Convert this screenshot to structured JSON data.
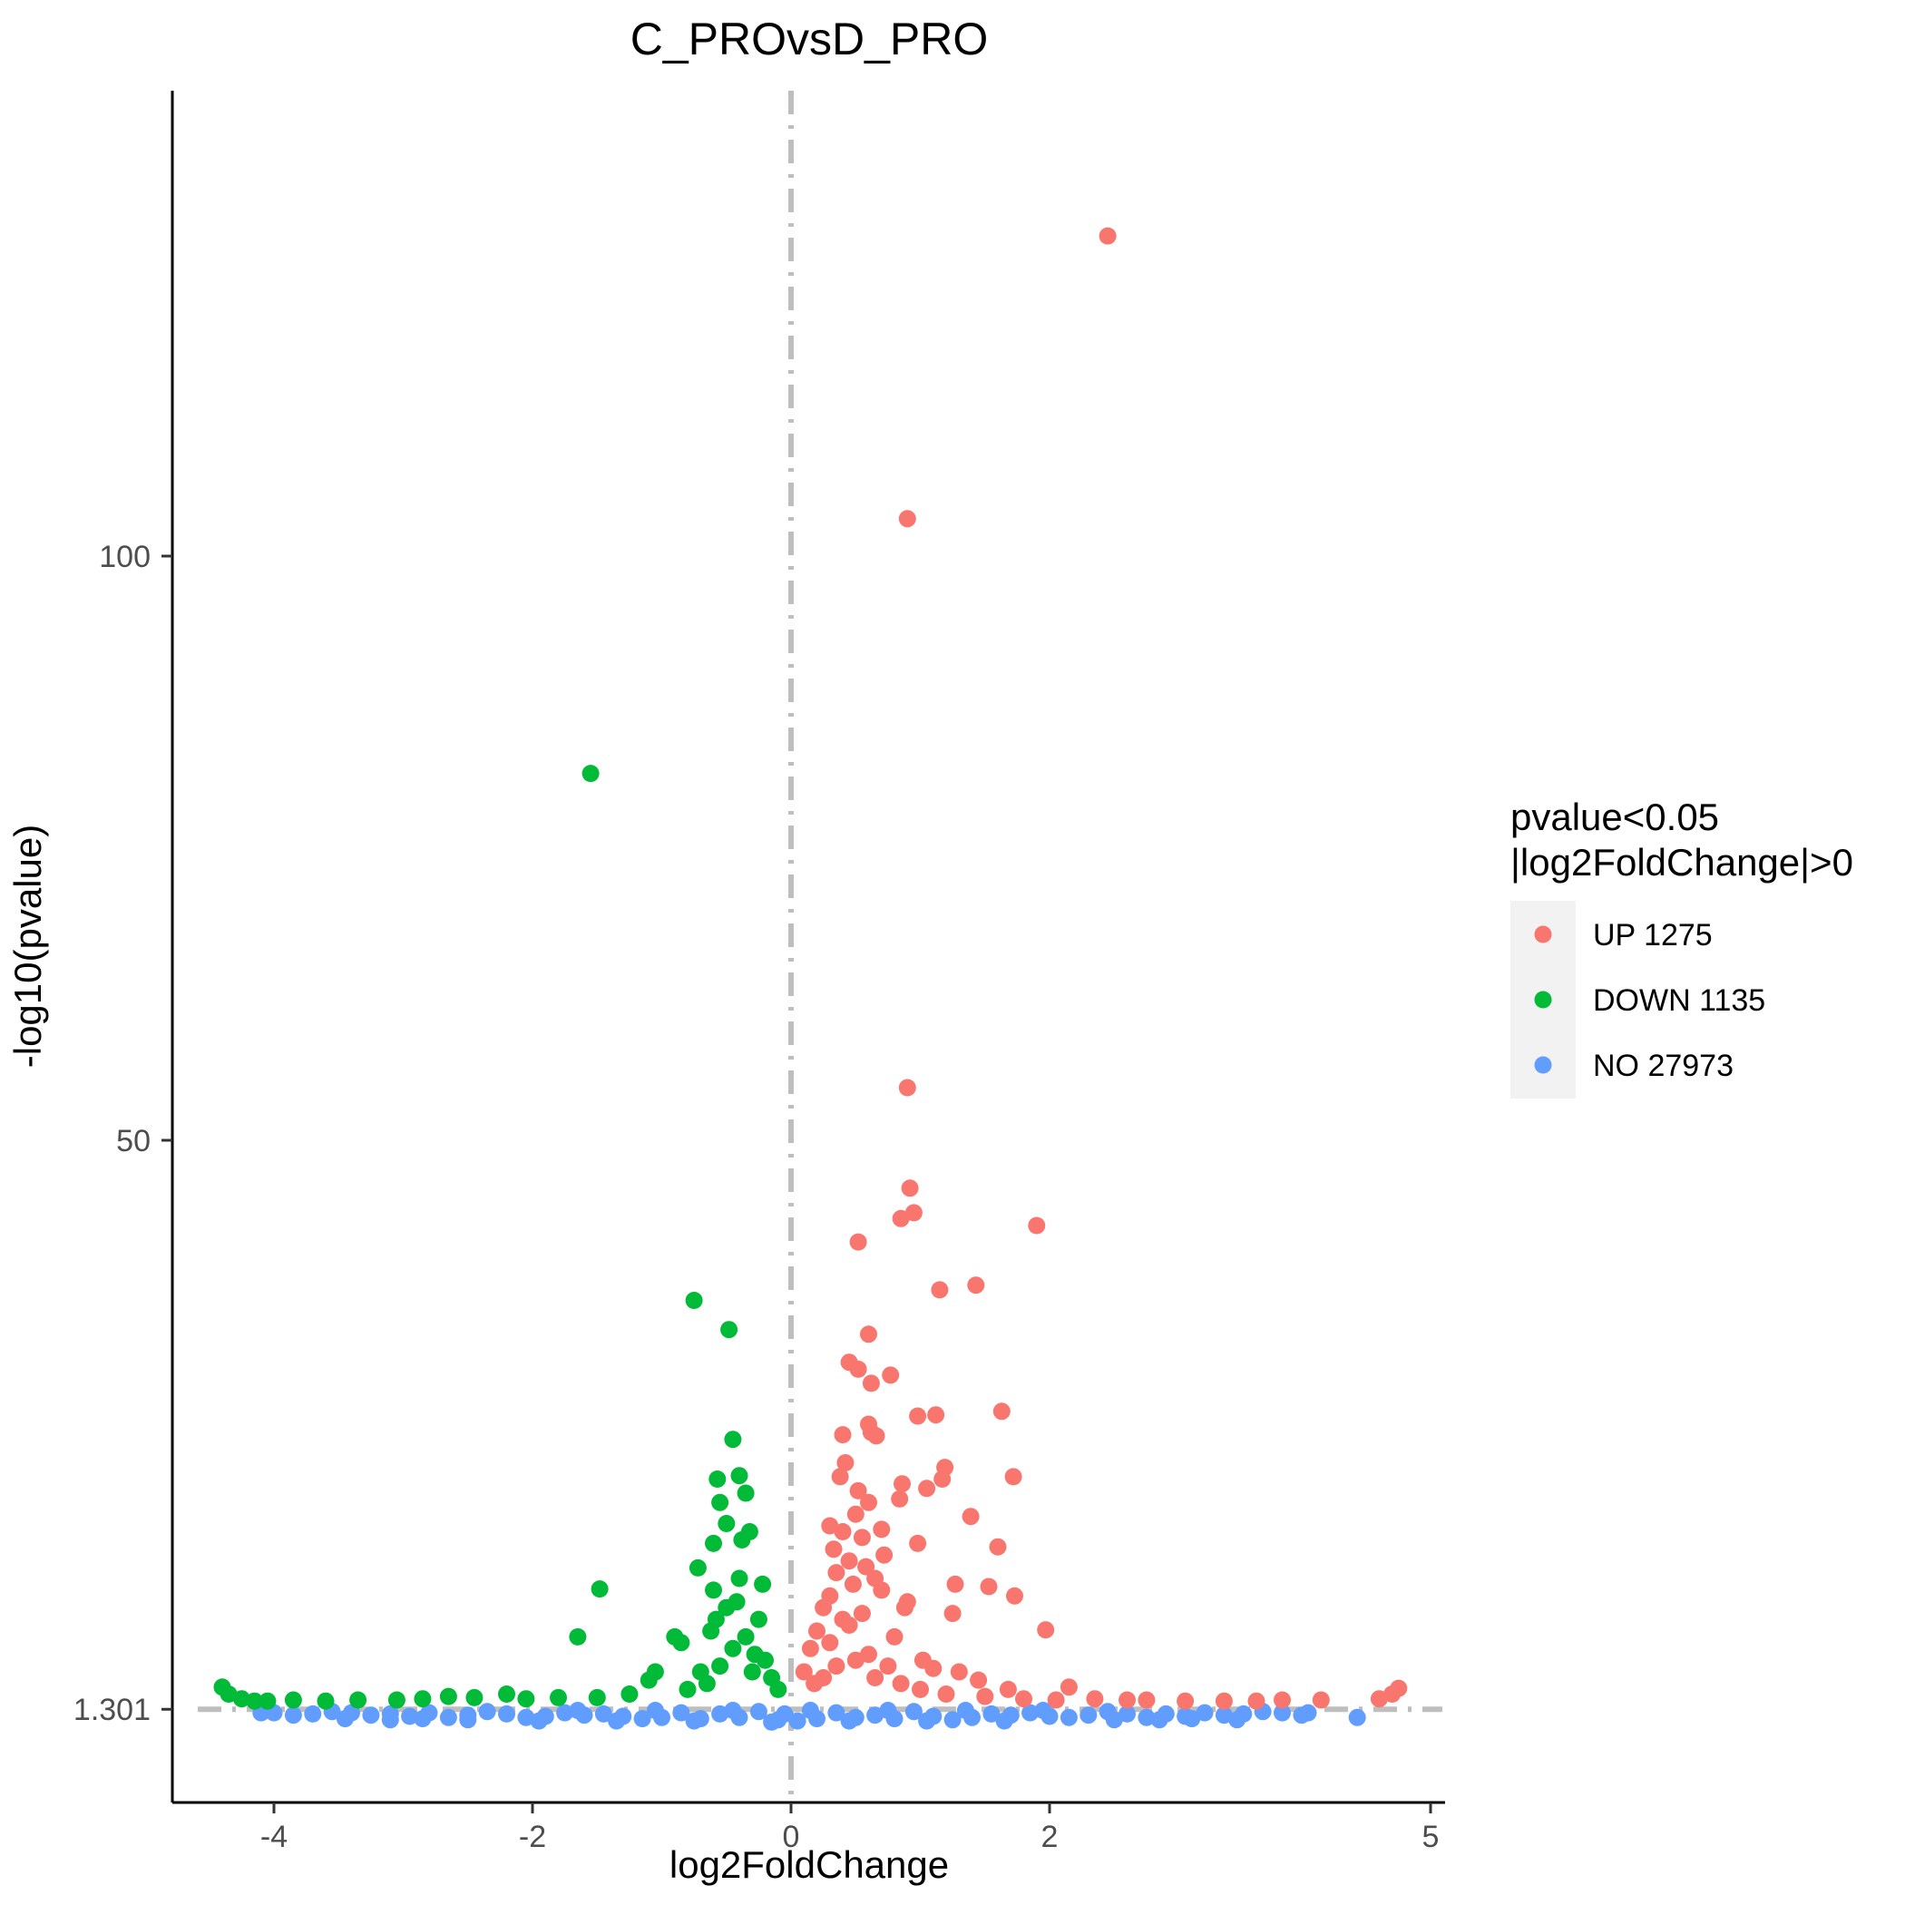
{
  "chart_data": {
    "type": "scatter",
    "title": "C_PROvsD_PRO",
    "xlabel": "log2FoldChange",
    "ylabel": "-log10(pvalue)",
    "xlim": [
      -5,
      5
    ],
    "ylim": [
      -6,
      134
    ],
    "x_ticks": [
      {
        "value": -4,
        "label": "-4"
      },
      {
        "value": -2,
        "label": "-2"
      },
      {
        "value": 0,
        "label": "0"
      },
      {
        "value": 2,
        "label": "2"
      },
      {
        "value": 5,
        "label": "5"
      }
    ],
    "y_ticks": [
      {
        "value": 1.301,
        "label": "1.301"
      },
      {
        "value": 50,
        "label": "50"
      },
      {
        "value": 100,
        "label": "100"
      }
    ],
    "threshold_lines": {
      "vertical_x": 0,
      "horizontal_y": 1.301,
      "color": "#bebebe",
      "style": "dotdash"
    },
    "grid": false,
    "legend": {
      "position": "right",
      "title_line1": "pvalue<0.05",
      "title_line2": "|log2FoldChange|>0",
      "entries": [
        {
          "label": "UP 1275",
          "color": "#F8766D"
        },
        {
          "label": "DOWN 1135",
          "color": "#00BA38"
        },
        {
          "label": "NO 27973",
          "color": "#619CFF"
        }
      ]
    },
    "series": [
      {
        "name": "UP 1275",
        "color": "#F8766D",
        "points": [
          [
            2.45,
            127.4
          ],
          [
            0.9,
            103.2
          ],
          [
            0.9,
            54.5
          ],
          [
            0.92,
            45.9
          ],
          [
            0.95,
            43.8
          ],
          [
            0.85,
            43.3
          ],
          [
            1.9,
            42.7
          ],
          [
            0.52,
            41.3
          ],
          [
            1.43,
            37.6
          ],
          [
            1.15,
            37.2
          ],
          [
            0.6,
            33.4
          ],
          [
            0.45,
            31.0
          ],
          [
            0.52,
            30.4
          ],
          [
            0.77,
            29.9
          ],
          [
            0.62,
            29.2
          ],
          [
            1.63,
            26.8
          ],
          [
            0.98,
            26.4
          ],
          [
            1.12,
            26.5
          ],
          [
            0.6,
            25.7
          ],
          [
            0.62,
            25.0
          ],
          [
            0.4,
            24.8
          ],
          [
            0.66,
            24.7
          ],
          [
            1.19,
            22.0
          ],
          [
            1.72,
            21.2
          ],
          [
            0.42,
            22.4
          ],
          [
            0.38,
            21.2
          ],
          [
            1.17,
            21.0
          ],
          [
            0.86,
            20.6
          ],
          [
            1.05,
            20.2
          ],
          [
            0.52,
            20.0
          ],
          [
            0.84,
            19.3
          ],
          [
            1.39,
            17.8
          ],
          [
            0.98,
            15.5
          ],
          [
            1.6,
            15.2
          ],
          [
            0.7,
            16.7
          ],
          [
            0.3,
            17.0
          ],
          [
            0.6,
            19.0
          ],
          [
            0.5,
            18.0
          ],
          [
            0.4,
            16.5
          ],
          [
            0.55,
            16.0
          ],
          [
            1.27,
            12.0
          ],
          [
            1.53,
            11.8
          ],
          [
            1.73,
            11.0
          ],
          [
            1.97,
            8.1
          ],
          [
            1.25,
            9.5
          ],
          [
            0.9,
            10.5
          ],
          [
            0.88,
            10.0
          ],
          [
            0.35,
            13.0
          ],
          [
            0.45,
            14.0
          ],
          [
            0.65,
            12.5
          ],
          [
            0.7,
            11.5
          ],
          [
            0.3,
            11.0
          ],
          [
            0.25,
            10.0
          ],
          [
            0.55,
            9.5
          ],
          [
            0.8,
            7.5
          ],
          [
            1.02,
            5.5
          ],
          [
            1.1,
            4.8
          ],
          [
            1.3,
            4.5
          ],
          [
            1.45,
            3.8
          ],
          [
            1.68,
            3.0
          ],
          [
            2.15,
            3.2
          ],
          [
            0.2,
            8.0
          ],
          [
            0.15,
            6.5
          ],
          [
            0.1,
            4.5
          ],
          [
            0.18,
            3.5
          ],
          [
            0.3,
            7.0
          ],
          [
            0.45,
            8.5
          ],
          [
            0.6,
            6.0
          ],
          [
            0.75,
            5.0
          ],
          [
            0.5,
            5.5
          ],
          [
            0.35,
            5.0
          ],
          [
            0.25,
            4.0
          ],
          [
            0.65,
            4.0
          ],
          [
            0.85,
            3.5
          ],
          [
            1.0,
            3.0
          ],
          [
            1.2,
            2.6
          ],
          [
            1.5,
            2.4
          ],
          [
            1.8,
            2.2
          ],
          [
            2.05,
            2.1
          ],
          [
            2.35,
            2.2
          ],
          [
            2.6,
            2.1
          ],
          [
            2.75,
            2.1
          ],
          [
            3.05,
            2.0
          ],
          [
            3.35,
            2.0
          ],
          [
            3.6,
            2.0
          ],
          [
            3.8,
            2.1
          ],
          [
            4.1,
            2.1
          ],
          [
            4.55,
            2.2
          ],
          [
            4.65,
            2.6
          ],
          [
            4.7,
            3.1
          ],
          [
            0.4,
            9.0
          ],
          [
            0.58,
            13.5
          ],
          [
            0.72,
            14.5
          ],
          [
            0.33,
            15.0
          ],
          [
            0.48,
            12.0
          ]
        ]
      },
      {
        "name": "DOWN 1135",
        "color": "#00BA38",
        "points": [
          [
            -1.55,
            81.4
          ],
          [
            -0.75,
            36.3
          ],
          [
            -0.48,
            33.8
          ],
          [
            -0.45,
            24.4
          ],
          [
            -0.57,
            21.0
          ],
          [
            -0.4,
            21.3
          ],
          [
            -0.35,
            19.8
          ],
          [
            -0.55,
            19.0
          ],
          [
            -0.5,
            17.2
          ],
          [
            -0.32,
            16.5
          ],
          [
            -0.38,
            15.8
          ],
          [
            -0.6,
            15.5
          ],
          [
            -0.72,
            13.4
          ],
          [
            -0.22,
            12.0
          ],
          [
            -0.6,
            11.5
          ],
          [
            -0.5,
            10.0
          ],
          [
            -0.42,
            10.5
          ],
          [
            -1.48,
            11.6
          ],
          [
            -1.65,
            7.5
          ],
          [
            -0.9,
            7.5
          ],
          [
            -0.85,
            7.0
          ],
          [
            -0.62,
            8.0
          ],
          [
            -0.25,
            9.0
          ],
          [
            -0.28,
            6.0
          ],
          [
            -0.35,
            7.5
          ],
          [
            -1.05,
            4.5
          ],
          [
            -1.1,
            3.8
          ],
          [
            -0.7,
            4.5
          ],
          [
            -0.55,
            5.0
          ],
          [
            -0.3,
            4.5
          ],
          [
            -0.15,
            4.0
          ],
          [
            -0.1,
            3.0
          ],
          [
            -0.2,
            5.5
          ],
          [
            -0.45,
            6.5
          ],
          [
            -0.65,
            3.5
          ],
          [
            -0.8,
            3.0
          ],
          [
            -1.25,
            2.6
          ],
          [
            -1.5,
            2.3
          ],
          [
            -1.8,
            2.3
          ],
          [
            -2.05,
            2.2
          ],
          [
            -2.2,
            2.6
          ],
          [
            -2.45,
            2.3
          ],
          [
            -2.65,
            2.4
          ],
          [
            -2.85,
            2.2
          ],
          [
            -3.05,
            2.1
          ],
          [
            -3.35,
            2.1
          ],
          [
            -3.6,
            2.0
          ],
          [
            -3.85,
            2.1
          ],
          [
            -4.05,
            2.0
          ],
          [
            -4.25,
            2.2
          ],
          [
            -4.35,
            2.6
          ],
          [
            -4.4,
            3.2
          ],
          [
            -4.15,
            2.0
          ],
          [
            -0.4,
            12.5
          ],
          [
            -0.58,
            9.0
          ]
        ]
      },
      {
        "name": "NO 27973",
        "color": "#619CFF",
        "points": [
          [
            4.38,
            0.6
          ],
          [
            -4.0,
            1.0
          ],
          [
            -3.7,
            0.9
          ],
          [
            -3.4,
            1.0
          ],
          [
            -3.1,
            0.9
          ],
          [
            -2.8,
            1.0
          ],
          [
            -2.5,
            0.8
          ],
          [
            -2.2,
            0.9
          ],
          [
            -1.9,
            0.7
          ],
          [
            -1.6,
            0.8
          ],
          [
            -1.3,
            0.7
          ],
          [
            -1.0,
            0.6
          ],
          [
            -0.7,
            0.5
          ],
          [
            -0.4,
            0.6
          ],
          [
            -0.1,
            0.4
          ],
          [
            0.2,
            0.5
          ],
          [
            0.5,
            0.6
          ],
          [
            0.8,
            0.5
          ],
          [
            1.1,
            0.7
          ],
          [
            1.4,
            0.6
          ],
          [
            1.7,
            0.8
          ],
          [
            2.0,
            0.7
          ],
          [
            2.3,
            0.8
          ],
          [
            2.6,
            0.9
          ],
          [
            2.9,
            0.9
          ],
          [
            3.2,
            1.0
          ],
          [
            3.5,
            0.9
          ],
          [
            3.8,
            1.0
          ],
          [
            -0.25,
            1.1
          ],
          [
            0.35,
            1.0
          ],
          [
            -0.55,
            0.9
          ],
          [
            0.65,
            0.8
          ],
          [
            -0.85,
            1.0
          ],
          [
            0.95,
            1.1
          ],
          [
            -1.15,
            0.5
          ],
          [
            1.25,
            0.4
          ],
          [
            -1.45,
            0.9
          ],
          [
            1.55,
            0.9
          ],
          [
            -1.75,
            1.0
          ],
          [
            1.85,
            1.0
          ],
          [
            -2.05,
            0.6
          ],
          [
            2.15,
            0.6
          ],
          [
            -2.35,
            1.1
          ],
          [
            2.45,
            1.1
          ],
          [
            -2.65,
            0.6
          ],
          [
            2.75,
            0.6
          ],
          [
            -2.95,
            0.7
          ],
          [
            3.05,
            0.7
          ],
          [
            -3.25,
            0.8
          ],
          [
            3.35,
            0.8
          ],
          [
            -3.55,
            1.1
          ],
          [
            3.65,
            1.1
          ],
          [
            -3.85,
            0.8
          ],
          [
            3.95,
            0.8
          ],
          [
            0.05,
            0.3
          ],
          [
            -0.05,
            0.9
          ],
          [
            0.15,
            1.2
          ],
          [
            -0.15,
            0.2
          ],
          [
            0.45,
            0.3
          ],
          [
            -0.45,
            1.2
          ],
          [
            0.75,
            1.2
          ],
          [
            -0.75,
            0.3
          ],
          [
            1.05,
            0.3
          ],
          [
            -1.05,
            1.2
          ],
          [
            1.35,
            1.2
          ],
          [
            -1.35,
            0.3
          ],
          [
            1.65,
            0.3
          ],
          [
            -1.65,
            1.2
          ],
          [
            1.95,
            1.2
          ],
          [
            -1.95,
            0.3
          ],
          [
            3.45,
            0.4
          ],
          [
            -3.45,
            0.5
          ],
          [
            3.1,
            0.5
          ],
          [
            -3.1,
            0.4
          ],
          [
            2.85,
            0.4
          ],
          [
            -2.85,
            0.5
          ],
          [
            2.5,
            0.4
          ],
          [
            -2.5,
            0.4
          ],
          [
            4.0,
            1.0
          ],
          [
            -4.1,
            1.0
          ]
        ]
      }
    ]
  }
}
